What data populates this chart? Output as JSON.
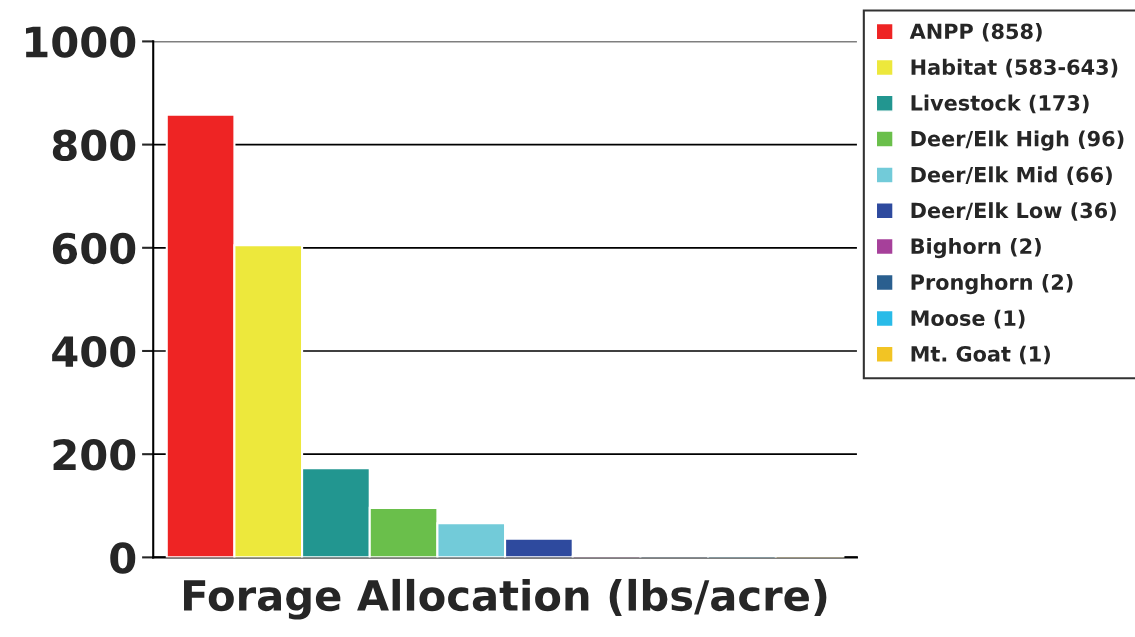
{
  "chart_data": {
    "type": "bar",
    "xlabel": "Forage Allocation (lbs/acre)",
    "categories": [
      null,
      null,
      null,
      null,
      null,
      null,
      null,
      null,
      null,
      null
    ],
    "series": [
      {
        "name": "ANPP (858)",
        "color": "#ee2424",
        "values": [
          858,
          null,
          null,
          null,
          null,
          null,
          null,
          null,
          null,
          null
        ]
      },
      {
        "name": "Habitat (583-643)",
        "color": "#ede83c",
        "values": [
          null,
          605,
          null,
          null,
          null,
          null,
          null,
          null,
          null,
          null
        ]
      },
      {
        "name": "Livestock (173)",
        "color": "#229690",
        "values": [
          null,
          null,
          173,
          null,
          null,
          null,
          null,
          null,
          null,
          null
        ]
      },
      {
        "name": "Deer/Elk High (96)",
        "color": "#6abf4b",
        "values": [
          null,
          null,
          null,
          96,
          null,
          null,
          null,
          null,
          null,
          null
        ]
      },
      {
        "name": "Deer/Elk Mid (66)",
        "color": "#72cbd9",
        "values": [
          null,
          null,
          null,
          null,
          66,
          null,
          null,
          null,
          null,
          null
        ]
      },
      {
        "name": "Deer/Elk Low (36)",
        "color": "#2e4a9e",
        "values": [
          null,
          null,
          null,
          null,
          null,
          36,
          null,
          null,
          null,
          null
        ]
      },
      {
        "name": "Bighorn (2)",
        "color": "#a6409a",
        "values": [
          null,
          null,
          null,
          null,
          null,
          null,
          2,
          null,
          null,
          null
        ]
      },
      {
        "name": "Pronghorn (2)",
        "color": "#2a5f8f",
        "values": [
          null,
          null,
          null,
          null,
          null,
          null,
          null,
          2,
          null,
          null
        ]
      },
      {
        "name": "Moose (1)",
        "color": "#29bbe8",
        "values": [
          null,
          null,
          null,
          null,
          null,
          null,
          null,
          null,
          1,
          null
        ]
      },
      {
        "name": "Mt. Goat (1)",
        "color": "#f2c424",
        "values": [
          null,
          null,
          null,
          null,
          null,
          null,
          null,
          null,
          null,
          1
        ]
      }
    ],
    "ylim": [
      0,
      1000
    ],
    "yticks": [
      0,
      200,
      400,
      600,
      800,
      1000
    ],
    "grid": "y",
    "legend": "top right"
  }
}
